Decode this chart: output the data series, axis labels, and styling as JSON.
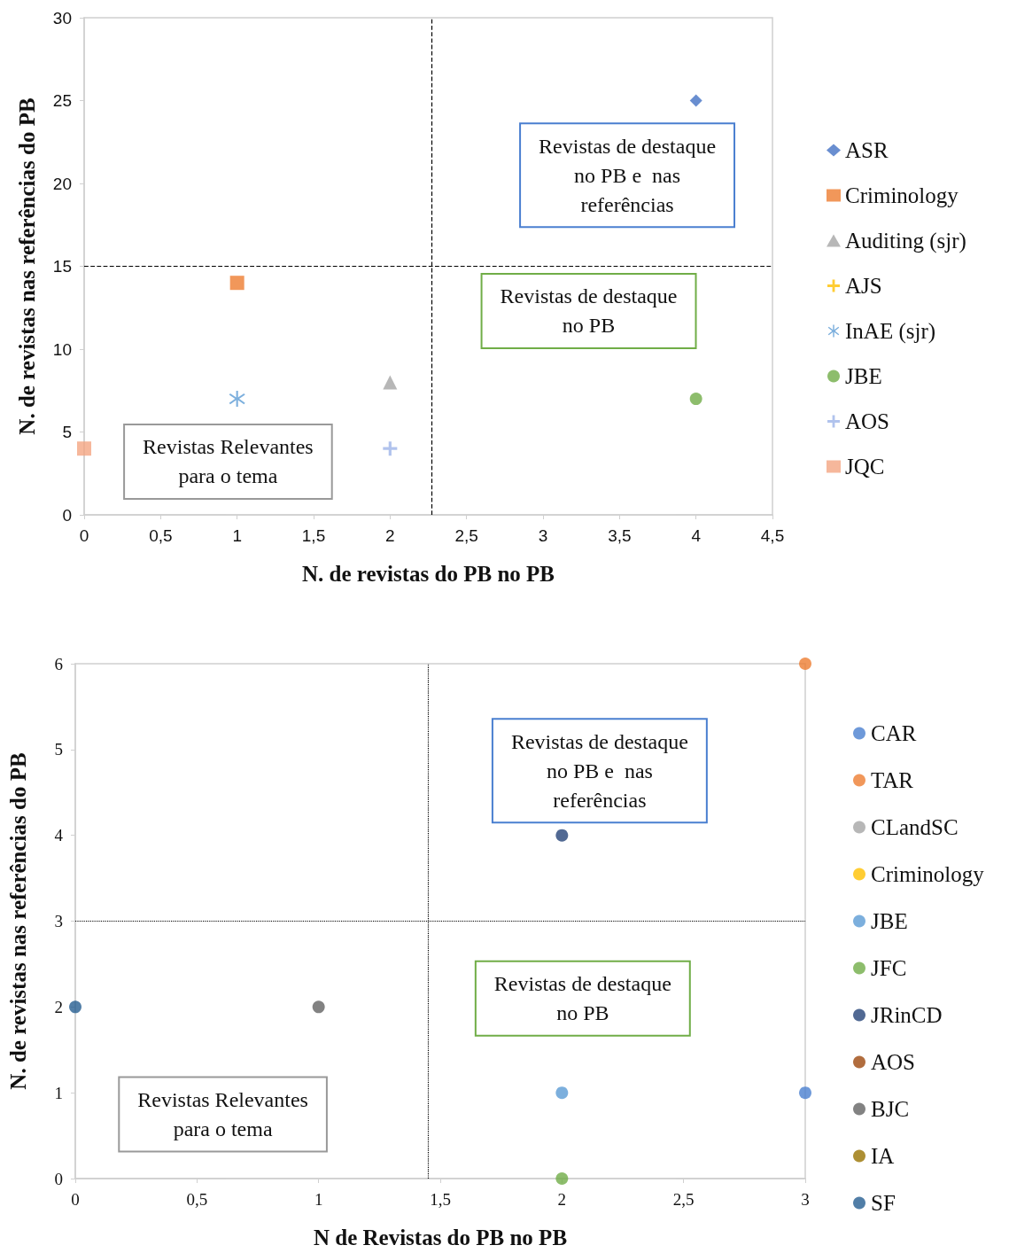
{
  "chart_data": [
    {
      "type": "scatter",
      "xlabel": "N. de revistas do PB no PB",
      "ylabel": "N. de revistas nas referências do PB",
      "xlim": [
        0,
        4.5
      ],
      "xticks": [
        0,
        {
          "value": 0.5,
          "label": "0,5"
        },
        1,
        {
          "value": 1.5,
          "label": "1,5"
        },
        2,
        {
          "value": 2.5,
          "label": "2,5"
        },
        3,
        {
          "value": 3.5,
          "label": "3,5"
        },
        4,
        {
          "value": 4.5,
          "label": "4,5"
        }
      ],
      "ylim": [
        0,
        30
      ],
      "yticks": [
        0,
        5,
        10,
        15,
        20,
        25,
        30
      ],
      "legend": "right",
      "series": [
        {
          "name": "ASR",
          "color": "#4472c4",
          "marker": "diamond",
          "x": [
            4
          ],
          "values": [
            25
          ]
        },
        {
          "name": "Criminology",
          "color": "#ed7d31",
          "marker": "square",
          "x": [
            1
          ],
          "values": [
            14
          ]
        },
        {
          "name": "Auditing (sjr)",
          "color": "#a5a5a5",
          "marker": "triangle",
          "x": [
            2
          ],
          "values": [
            8
          ]
        },
        {
          "name": "AJS",
          "color": "#ffc000",
          "marker": "cross"
        },
        {
          "name": "InAE (sjr)",
          "color": "#5b9bd5",
          "marker": "star",
          "x": [
            1
          ],
          "values": [
            7
          ]
        },
        {
          "name": "JBE",
          "color": "#70ad47",
          "marker": "circle",
          "x": [
            4
          ],
          "values": [
            7
          ]
        },
        {
          "name": "AOS",
          "color": "#9db4e8",
          "marker": "cross",
          "x": [
            2
          ],
          "values": [
            4
          ]
        },
        {
          "name": "JQC",
          "color": "#f4a582",
          "marker": "square",
          "x": [
            0
          ],
          "values": [
            4
          ]
        }
      ],
      "ref_lines": [
        {
          "axis": "x",
          "value": 2.27,
          "label": null,
          "line_style": "dashed",
          "color": "#000000"
        },
        {
          "axis": "y",
          "value": 15,
          "label": null,
          "line_style": "dashed",
          "color": "#000000"
        }
      ],
      "annotations": [
        "Revistas de destaque\nno PB e  nas\nreferências",
        "Revistas de destaque\nno PB",
        "Revistas Relevantes\npara o tema"
      ]
    },
    {
      "type": "scatter",
      "xlabel": "N de Revistas do PB no PB",
      "ylabel": "N. de revistas nas referências do PB",
      "xlim": [
        0,
        3
      ],
      "xticks": [
        0,
        {
          "value": 0.5,
          "label": "0,5"
        },
        1,
        {
          "value": 1.5,
          "label": "1,5"
        },
        2,
        {
          "value": 2.5,
          "label": "2,5"
        },
        3
      ],
      "ylim": [
        0,
        6
      ],
      "yticks": [
        0,
        1,
        2,
        3,
        4,
        5,
        6
      ],
      "legend": "right",
      "marker": "circle",
      "series": [
        {
          "name": "CAR",
          "color": "#4a7fd0",
          "x": [
            3
          ],
          "values": [
            1
          ]
        },
        {
          "name": "TAR",
          "color": "#ed7d31",
          "x": [
            3
          ],
          "values": [
            6
          ]
        },
        {
          "name": "CLandSC",
          "color": "#a5a5a5"
        },
        {
          "name": "Criminology",
          "color": "#ffc000"
        },
        {
          "name": "JBE",
          "color": "#5b9bd5",
          "x": [
            2
          ],
          "values": [
            1
          ]
        },
        {
          "name": "JFC",
          "color": "#70ad47",
          "x": [
            2
          ],
          "values": [
            0
          ]
        },
        {
          "name": "JRinCD",
          "color": "#264478",
          "x": [
            2
          ],
          "values": [
            4
          ]
        },
        {
          "name": "AOS",
          "color": "#9e480e"
        },
        {
          "name": "BJC",
          "color": "#636363",
          "x": [
            1
          ],
          "values": [
            2
          ]
        },
        {
          "name": "IA",
          "color": "#997300"
        },
        {
          "name": "SF",
          "color": "#255e91",
          "x": [
            0
          ],
          "values": [
            2
          ]
        }
      ],
      "ref_lines": [
        {
          "axis": "x",
          "value": 1.45,
          "label": null,
          "line_style": "dotted",
          "color": "#000000"
        },
        {
          "axis": "y",
          "value": 3,
          "label": null,
          "line_style": "dotted",
          "color": "#000000"
        }
      ],
      "annotations": [
        "Revistas de destaque\nno PB e  nas\nreferências",
        "Revistas de destaque\nno PB",
        "Revistas Relevantes\npara o tema"
      ]
    }
  ]
}
